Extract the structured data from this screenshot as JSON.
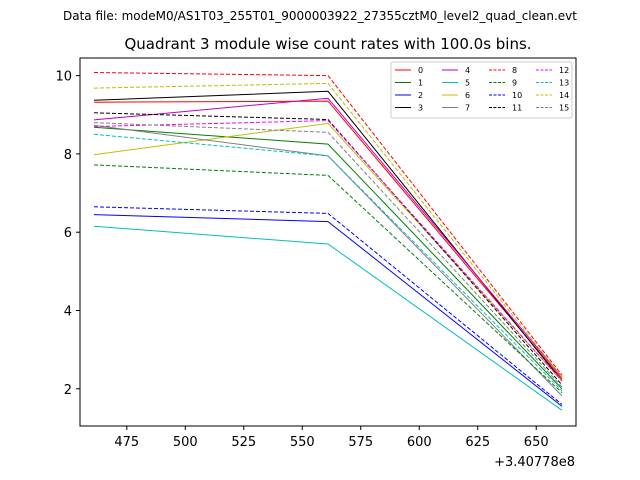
{
  "chart_data": {
    "type": "line",
    "suptitle": "Data file: modeM0/AS1T03_255T01_9000003922_27355cztM0_level2_quad_clean.evt",
    "title": "Quadrant 3 module wise count rates with 100.0s bins.",
    "xlabel": "",
    "ylabel": "",
    "x_offset_label": "+3.40778e8",
    "xlim": [
      455,
      667
    ],
    "ylim": [
      1.05,
      10.45
    ],
    "xticks": [
      475,
      500,
      525,
      550,
      575,
      600,
      625,
      650
    ],
    "yticks": [
      2,
      4,
      6,
      8,
      10
    ],
    "x": [
      461,
      561,
      661
    ],
    "legend_position": "top-right",
    "legend_columns": 4,
    "series": [
      {
        "name": "0",
        "color": "#ff0000",
        "dashed": false,
        "values": [
          9.32,
          9.35,
          2.25
        ]
      },
      {
        "name": "1",
        "color": "#008000",
        "dashed": false,
        "values": [
          8.68,
          8.25,
          2.0
        ]
      },
      {
        "name": "2",
        "color": "#0000ff",
        "dashed": false,
        "values": [
          6.45,
          6.27,
          1.55
        ]
      },
      {
        "name": "3",
        "color": "#000000",
        "dashed": false,
        "values": [
          9.37,
          9.6,
          2.2
        ]
      },
      {
        "name": "4",
        "color": "#bf00bf",
        "dashed": false,
        "values": [
          8.87,
          9.42,
          2.3
        ]
      },
      {
        "name": "5",
        "color": "#00bfbf",
        "dashed": false,
        "values": [
          6.15,
          5.7,
          1.45
        ]
      },
      {
        "name": "6",
        "color": "#bfbf00",
        "dashed": false,
        "values": [
          7.98,
          8.78,
          2.2
        ]
      },
      {
        "name": "7",
        "color": "#808080",
        "dashed": false,
        "values": [
          8.73,
          7.95,
          1.82
        ]
      },
      {
        "name": "8",
        "color": "#ff0000",
        "dashed": true,
        "values": [
          10.08,
          10.0,
          2.35
        ]
      },
      {
        "name": "9",
        "color": "#008000",
        "dashed": true,
        "values": [
          7.72,
          7.45,
          1.9
        ]
      },
      {
        "name": "10",
        "color": "#0000ff",
        "dashed": true,
        "values": [
          6.65,
          6.48,
          1.6
        ]
      },
      {
        "name": "11",
        "color": "#000000",
        "dashed": true,
        "values": [
          9.05,
          8.88,
          2.1
        ]
      },
      {
        "name": "12",
        "color": "#ff00ff",
        "dashed": true,
        "values": [
          8.7,
          8.85,
          2.2
        ]
      },
      {
        "name": "13",
        "color": "#00bfbf",
        "dashed": true,
        "values": [
          8.5,
          7.95,
          1.95
        ]
      },
      {
        "name": "14",
        "color": "#bfbf00",
        "dashed": true,
        "values": [
          9.68,
          9.8,
          2.3
        ]
      },
      {
        "name": "15",
        "color": "#808080",
        "dashed": true,
        "values": [
          8.8,
          8.55,
          2.05
        ]
      }
    ]
  }
}
